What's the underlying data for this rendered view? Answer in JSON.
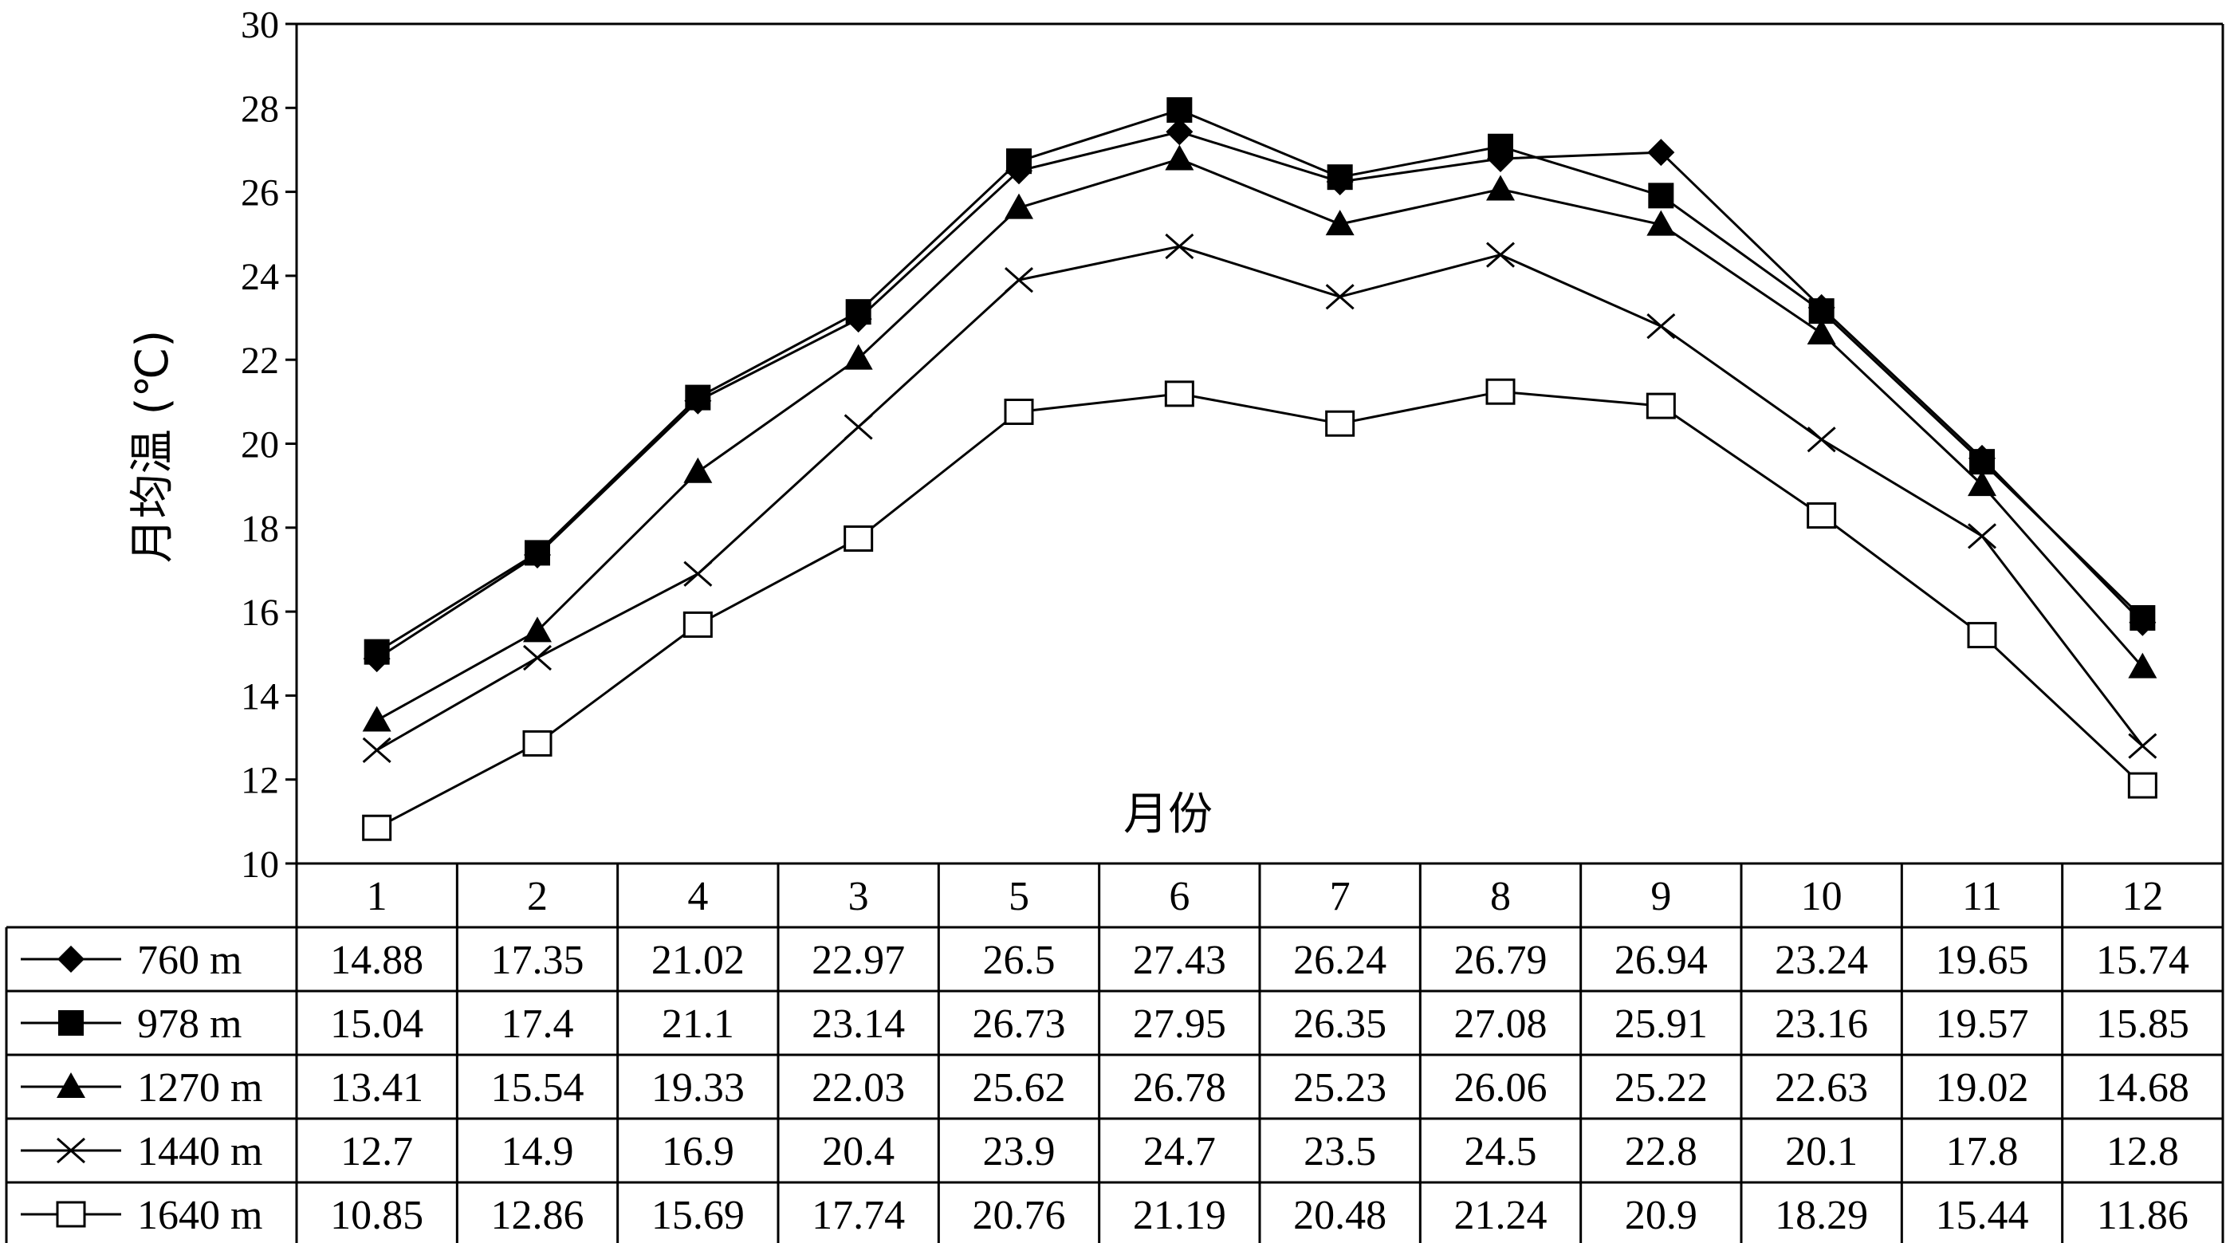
{
  "chart_data": {
    "type": "line",
    "ylabel": "月均温 (℃)",
    "xlabel": "月份",
    "ylim": [
      10,
      30
    ],
    "yticks": [
      10,
      12,
      14,
      16,
      18,
      20,
      22,
      24,
      26,
      28,
      30
    ],
    "categories": [
      "1",
      "2",
      "4",
      "3",
      "5",
      "6",
      "7",
      "8",
      "9",
      "10",
      "11",
      "12"
    ],
    "grid": false,
    "legend": "data-table-below",
    "series": [
      {
        "name": "760 m",
        "marker": "diamond-filled",
        "values": [
          14.88,
          17.35,
          21.02,
          22.97,
          26.5,
          27.43,
          26.24,
          26.79,
          26.94,
          23.24,
          19.65,
          15.74
        ]
      },
      {
        "name": "978 m",
        "marker": "square-filled",
        "values": [
          15.04,
          17.4,
          21.1,
          23.14,
          26.73,
          27.95,
          26.35,
          27.08,
          25.91,
          23.16,
          19.57,
          15.85
        ]
      },
      {
        "name": "1270 m",
        "marker": "triangle-filled",
        "values": [
          13.41,
          15.54,
          19.33,
          22.03,
          25.62,
          26.78,
          25.23,
          26.06,
          25.22,
          22.63,
          19.02,
          14.68
        ]
      },
      {
        "name": "1440 m",
        "marker": "x",
        "values": [
          12.7,
          14.9,
          16.9,
          20.4,
          23.9,
          24.7,
          23.5,
          24.5,
          22.8,
          20.1,
          17.8,
          12.8
        ]
      },
      {
        "name": "1640 m",
        "marker": "square-open",
        "values": [
          10.85,
          12.86,
          15.69,
          17.74,
          20.76,
          21.19,
          20.48,
          21.24,
          20.9,
          18.29,
          15.44,
          11.86
        ]
      }
    ]
  }
}
